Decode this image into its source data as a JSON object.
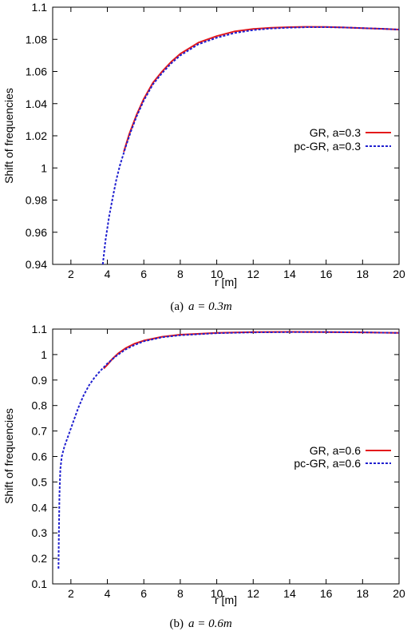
{
  "chart_data": [
    {
      "type": "line",
      "caption_prefix": "(a)",
      "caption_math": "a = 0.3m",
      "xlabel": "r [m]",
      "ylabel": "Shift of frequencies",
      "xlim": [
        1,
        20
      ],
      "ylim": [
        0.94,
        1.1
      ],
      "xticks": [
        2,
        4,
        6,
        8,
        10,
        12,
        14,
        16,
        18,
        20
      ],
      "yticks": [
        0.94,
        0.96,
        0.98,
        1.0,
        1.02,
        1.04,
        1.06,
        1.08,
        1.1
      ],
      "ytick_labels": [
        "0.94",
        "0.96",
        "0.98",
        "1",
        "1.02",
        "1.04",
        "1.06",
        "1.08",
        "1.1"
      ],
      "legend_position": "right",
      "series": [
        {
          "name": "GR, a=0.3",
          "color": "#e41a1c",
          "style": "solid",
          "x": [
            4.9,
            5.2,
            5.6,
            6.0,
            6.5,
            7.0,
            7.5,
            8.0,
            9.0,
            10.0,
            11.0,
            12.0,
            13.0,
            14.0,
            15.0,
            16.0,
            17.0,
            18.0,
            19.0,
            20.0
          ],
          "y": [
            1.01,
            1.021,
            1.033,
            1.043,
            1.053,
            1.06,
            1.066,
            1.071,
            1.078,
            1.082,
            1.085,
            1.0865,
            1.0872,
            1.0876,
            1.0878,
            1.0877,
            1.0874,
            1.087,
            1.0866,
            1.0861
          ]
        },
        {
          "name": "pc-GR, a=0.3",
          "color": "#1f1fcf",
          "style": "dashed",
          "x": [
            3.75,
            3.9,
            4.1,
            4.3,
            4.5,
            4.7,
            5.0,
            5.3,
            5.6,
            6.0,
            6.5,
            7.0,
            7.5,
            8.0,
            9.0,
            10.0,
            11.0,
            12.0,
            13.0,
            14.0,
            15.0,
            16.0,
            17.0,
            18.0,
            19.0,
            20.0
          ],
          "y": [
            0.94,
            0.955,
            0.97,
            0.982,
            0.993,
            1.002,
            1.013,
            1.023,
            1.032,
            1.042,
            1.052,
            1.059,
            1.065,
            1.07,
            1.077,
            1.081,
            1.084,
            1.0858,
            1.0868,
            1.0873,
            1.0876,
            1.0876,
            1.0874,
            1.087,
            1.0866,
            1.0861
          ]
        }
      ]
    },
    {
      "type": "line",
      "caption_prefix": "(b)",
      "caption_math": "a = 0.6m",
      "xlabel": "r [m]",
      "ylabel": "Shift of frequencies",
      "xlim": [
        1,
        20
      ],
      "ylim": [
        0.1,
        1.1
      ],
      "xticks": [
        2,
        4,
        6,
        8,
        10,
        12,
        14,
        16,
        18,
        20
      ],
      "yticks": [
        0.1,
        0.2,
        0.3,
        0.4,
        0.5,
        0.6,
        0.7,
        0.8,
        0.9,
        1.0,
        1.1
      ],
      "ytick_labels": [
        "0.1",
        "0.2",
        "0.3",
        "0.4",
        "0.5",
        "0.6",
        "0.7",
        "0.8",
        "0.9",
        "1",
        "1.1"
      ],
      "legend_position": "right",
      "series": [
        {
          "name": "GR, a=0.6",
          "color": "#e41a1c",
          "style": "solid",
          "x": [
            3.8,
            4.0,
            4.3,
            4.6,
            5.0,
            5.5,
            6.0,
            7.0,
            8.0,
            10.0,
            12.0,
            14.0,
            16.0,
            18.0,
            20.0
          ],
          "y": [
            0.945,
            0.96,
            0.985,
            1.005,
            1.025,
            1.043,
            1.055,
            1.07,
            1.078,
            1.085,
            1.088,
            1.089,
            1.088,
            1.087,
            1.085
          ]
        },
        {
          "name": "pc-GR, a=0.6",
          "color": "#1f1fcf",
          "style": "dashed",
          "x": [
            1.32,
            1.34,
            1.37,
            1.42,
            1.5,
            1.65,
            1.85,
            2.1,
            2.4,
            2.7,
            3.0,
            3.3,
            3.6,
            4.0,
            4.5,
            5.0,
            5.5,
            6.0,
            7.0,
            8.0,
            10.0,
            12.0,
            14.0,
            16.0,
            18.0,
            20.0
          ],
          "y": [
            0.16,
            0.3,
            0.45,
            0.55,
            0.6,
            0.64,
            0.68,
            0.73,
            0.79,
            0.84,
            0.88,
            0.91,
            0.935,
            0.965,
            0.995,
            1.02,
            1.038,
            1.052,
            1.068,
            1.076,
            1.084,
            1.087,
            1.088,
            1.088,
            1.087,
            1.085
          ]
        }
      ]
    }
  ]
}
